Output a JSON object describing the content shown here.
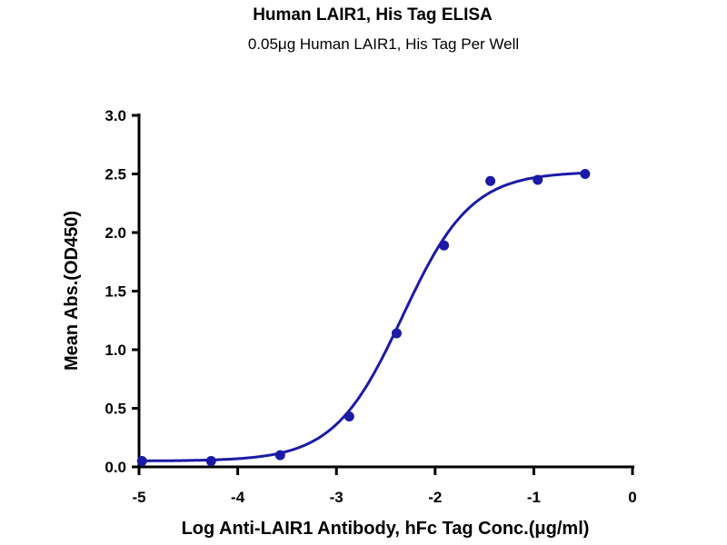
{
  "chart_data": {
    "type": "scatter",
    "title": "Human LAIR1, His Tag ELISA",
    "subtitle": "0.05μg Human LAIR1, His Tag Per Well",
    "xlabel": "Log Anti-LAIR1 Antibody, hFc Tag Conc.(μg/ml)",
    "ylabel": "Mean Abs.(OD450)",
    "xlim": [
      -5,
      0
    ],
    "ylim": [
      0,
      3.0
    ],
    "xticks": [
      "-5",
      "-4",
      "-3",
      "-2",
      "-1",
      "0"
    ],
    "yticks": [
      "0.0",
      "0.5",
      "1.0",
      "1.5",
      "2.0",
      "2.5",
      "3.0"
    ],
    "grid": false,
    "series": [
      {
        "name": "Human LAIR1, His Tag",
        "color": "#1a1aa6",
        "x": [
          -4.97,
          -4.27,
          -3.57,
          -2.87,
          -2.39,
          -1.91,
          -1.44,
          -0.96,
          -0.48
        ],
        "y": [
          0.05,
          0.05,
          0.1,
          0.43,
          1.14,
          1.89,
          2.44,
          2.45,
          2.5
        ],
        "fit": {
          "model": "4PL",
          "bottom": 0.05,
          "top": 2.52,
          "logEC50": -2.33,
          "hill": 1.25
        }
      }
    ]
  }
}
